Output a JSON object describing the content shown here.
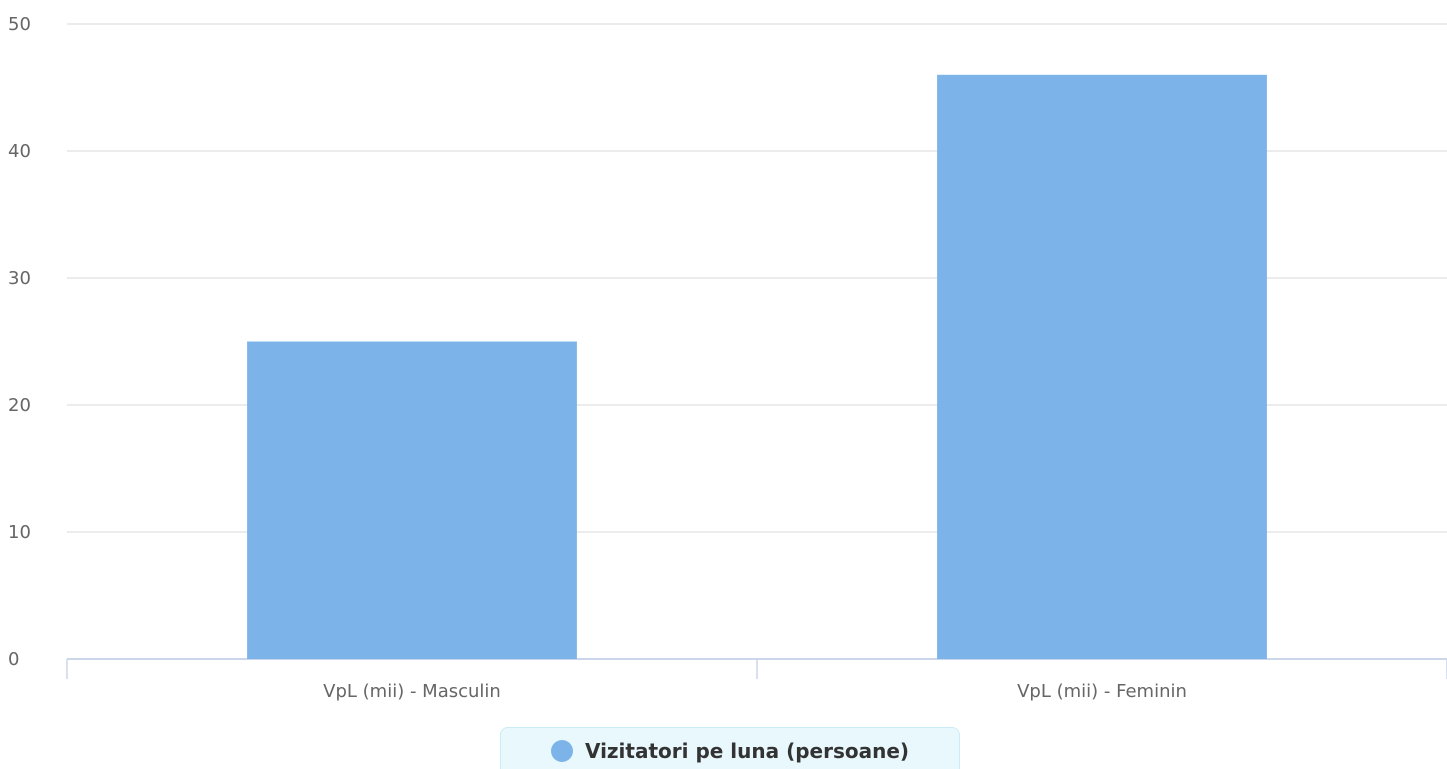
{
  "chart_data": {
    "type": "bar",
    "categories": [
      "VpL (mii) - Masculin",
      "VpL (mii) - Feminin"
    ],
    "series": [
      {
        "name": "Vizitatori pe luna (persoane)",
        "values": [
          25,
          46
        ],
        "color": "#7cb4ea"
      }
    ],
    "ylim": [
      0,
      50
    ],
    "yticks": [
      0,
      10,
      20,
      30,
      40,
      50
    ],
    "grid": true,
    "legend_position": "bottom-center",
    "title": "",
    "xlabel": "",
    "ylabel": ""
  },
  "legend": {
    "label": "Vizitatori pe luna (persoane)",
    "marker_color": "#7cb4ea"
  }
}
